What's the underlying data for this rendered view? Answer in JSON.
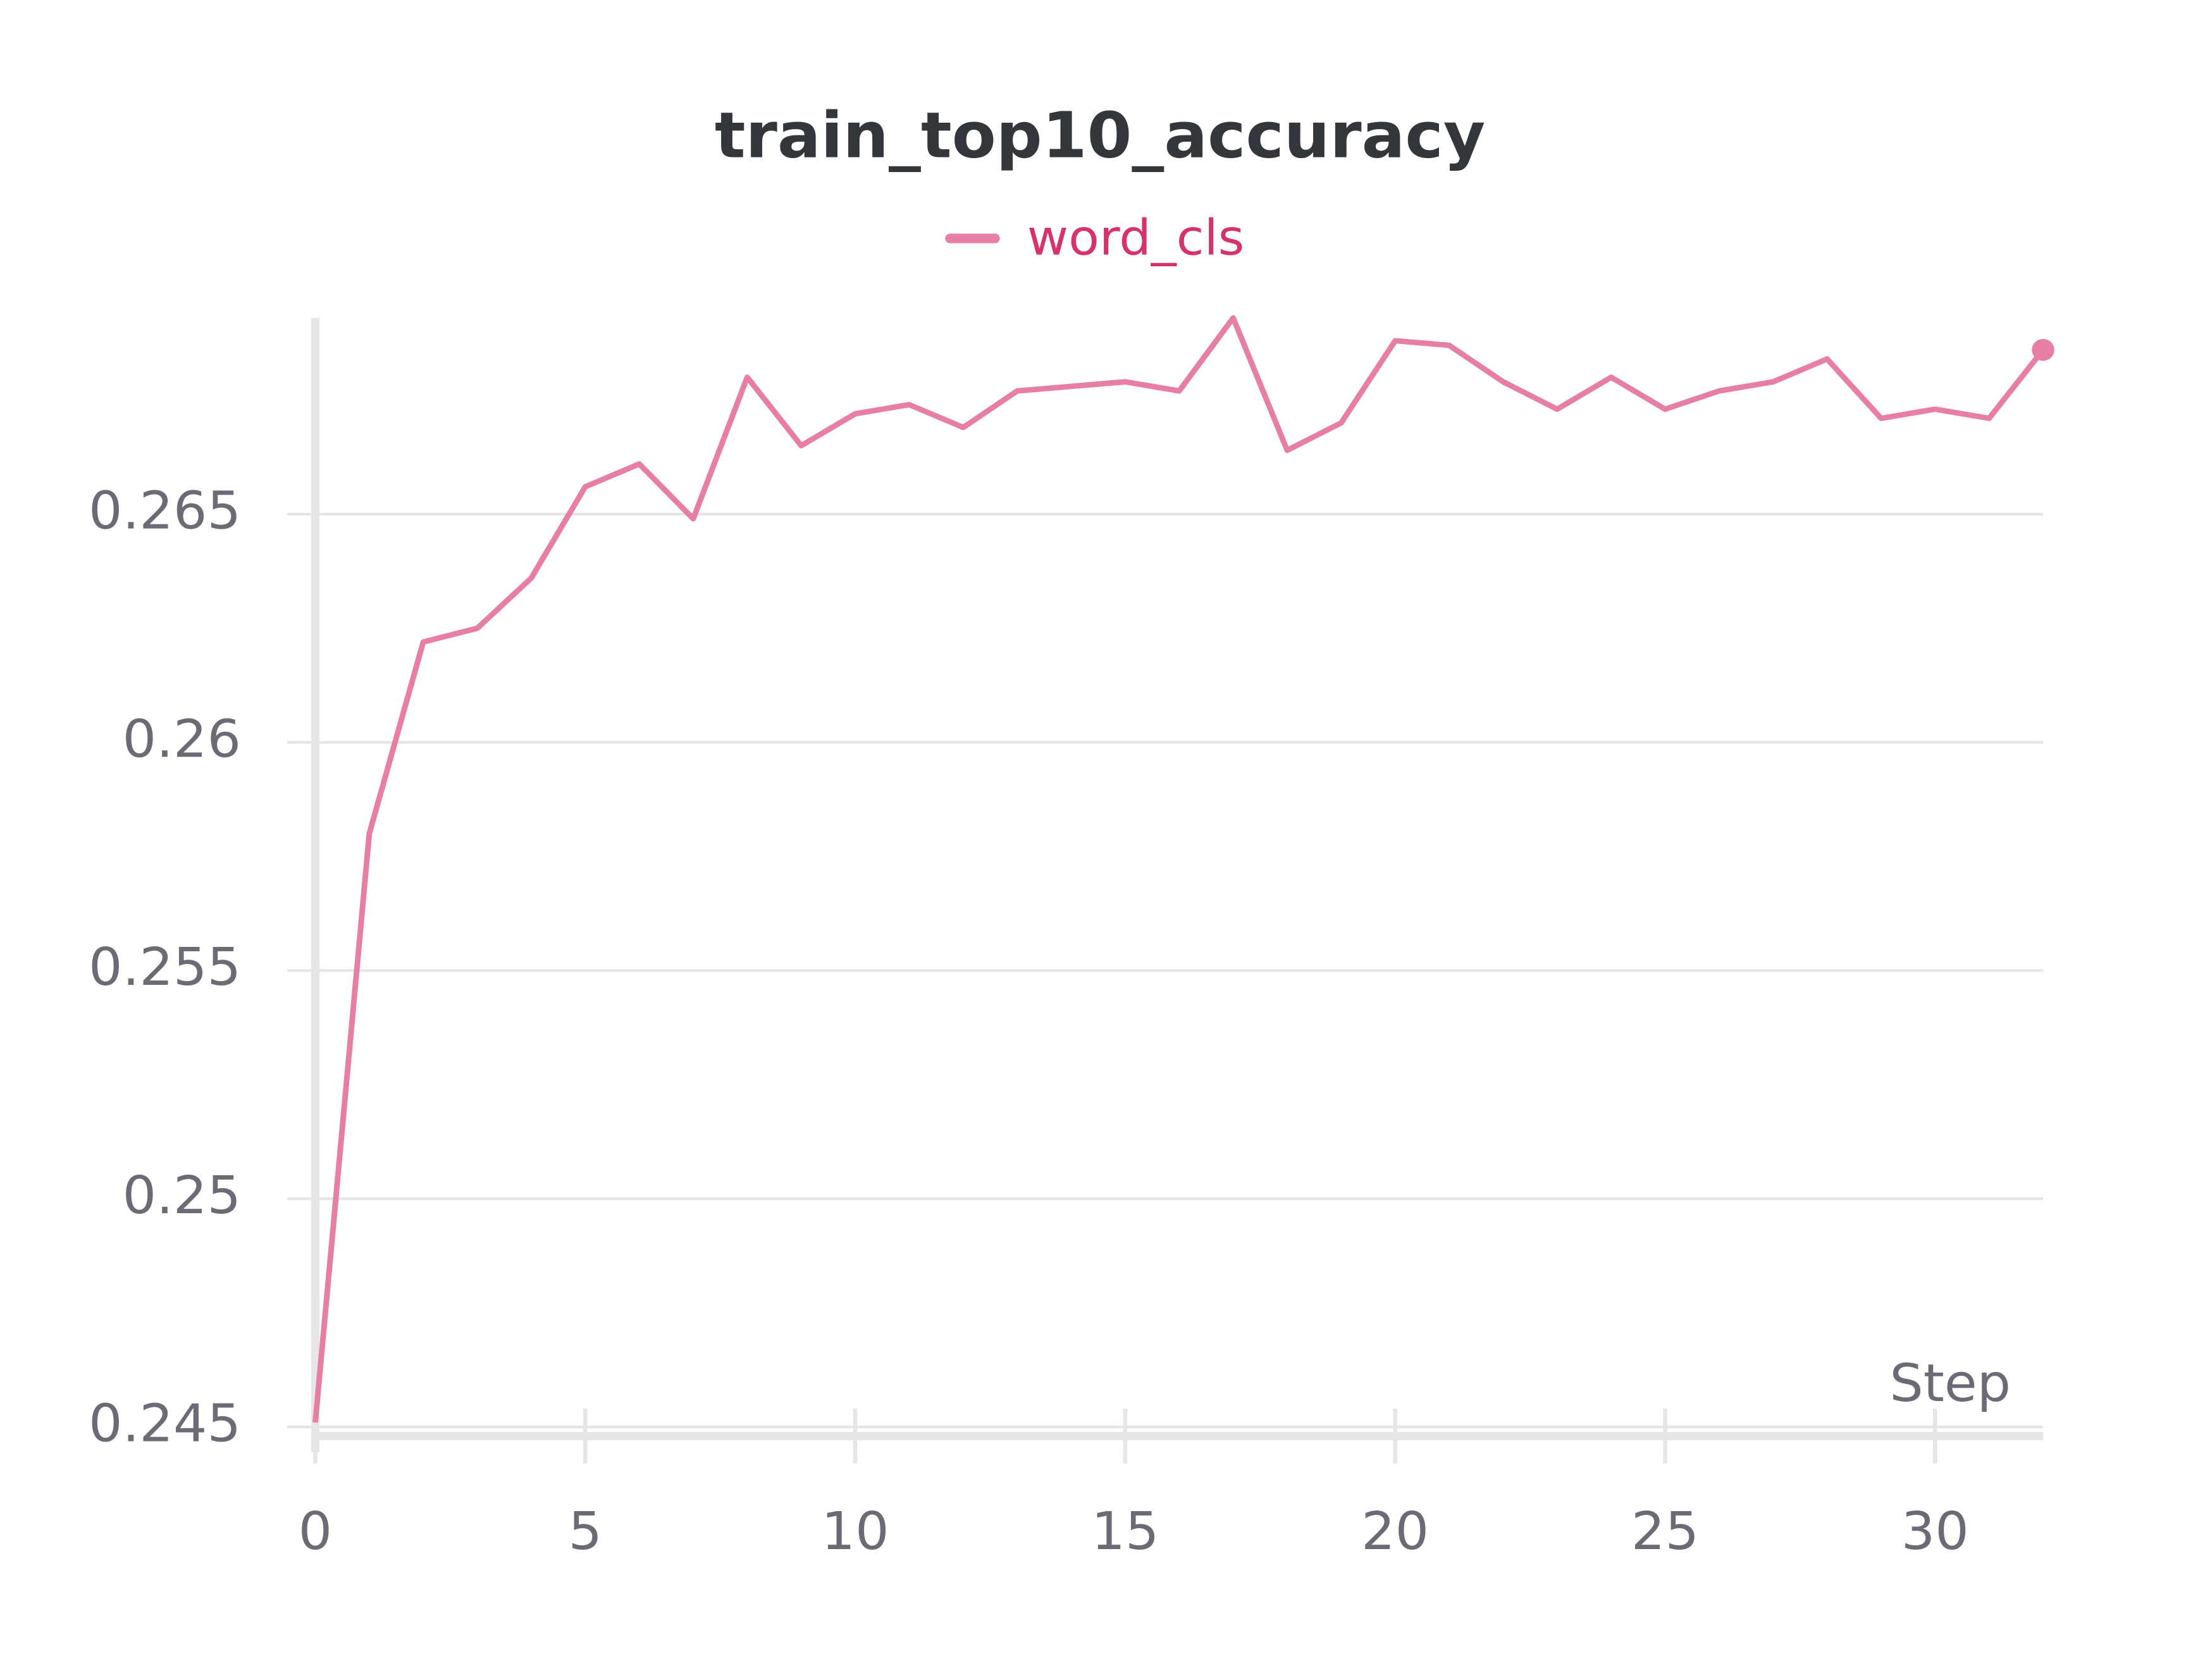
{
  "chart_data": {
    "type": "line",
    "title": "train_top10_accuracy",
    "x_label": "Step",
    "x": [
      0,
      1,
      2,
      3,
      4,
      5,
      6,
      7,
      8,
      9,
      10,
      11,
      12,
      13,
      14,
      15,
      16,
      17,
      18,
      19,
      20,
      21,
      22,
      23,
      24,
      25,
      26,
      27,
      28,
      29,
      30,
      31,
      32
    ],
    "series": [
      {
        "name": "word_cls",
        "color": "#e67ea6",
        "values": [
          0.2451,
          0.258,
          0.2622,
          0.2625,
          0.2636,
          0.2656,
          0.2661,
          0.2649,
          0.268,
          0.2665,
          0.2672,
          0.2674,
          0.2669,
          0.2677,
          0.2678,
          0.2679,
          0.2677,
          0.2693,
          0.2664,
          0.267,
          0.2688,
          0.2687,
          0.2679,
          0.2673,
          0.268,
          0.2673,
          0.2677,
          0.2679,
          0.2684,
          0.2671,
          0.2673,
          0.2671,
          0.2686
        ]
      }
    ],
    "xlim": [
      0,
      32
    ],
    "ylim": [
      0.2448,
      0.2693
    ],
    "xticks": [
      0,
      5,
      10,
      15,
      20,
      25,
      30
    ],
    "yticks": [
      0.245,
      0.25,
      0.255,
      0.26,
      0.265
    ],
    "grid": true
  }
}
